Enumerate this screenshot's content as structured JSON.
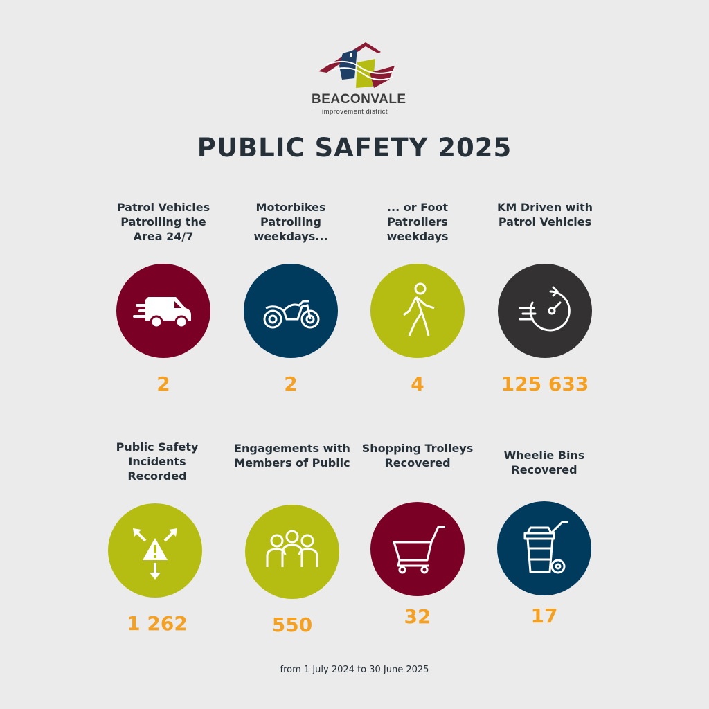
{
  "logo": {
    "name": "BEACONVALE",
    "subtitle": "improvement district"
  },
  "title": "PUBLIC SAFETY 2025",
  "colors": {
    "background": "#ebebeb",
    "maroon": "#7b0025",
    "navy": "#003a5d",
    "lime": "#b5bd12",
    "charcoal": "#333132",
    "value_orange": "#f4a023",
    "text": "#253038"
  },
  "stats": [
    {
      "label": "Patrol Vehicles Patrolling the Area 24/7",
      "value": "2",
      "icon": "van-icon",
      "color": "#7b0025"
    },
    {
      "label": "Motorbikes Patrolling weekdays...",
      "value": "2",
      "icon": "motorbike-icon",
      "color": "#003a5d"
    },
    {
      "label": "... or Foot Patrollers weekdays",
      "value": "4",
      "icon": "walking-person-icon",
      "color": "#b5bd12"
    },
    {
      "label": "KM Driven with Patrol Vehicles",
      "value": "125 633",
      "icon": "speedometer-icon",
      "color": "#333132"
    },
    {
      "label": "Public Safety Incidents Recorded",
      "value": "1 262",
      "icon": "warning-arrows-icon",
      "color": "#b5bd12"
    },
    {
      "label": "Engagements with Members of Public",
      "value": "550",
      "icon": "people-group-icon",
      "color": "#b5bd12"
    },
    {
      "label": "Shopping Trolleys Recovered",
      "value": "32",
      "icon": "shopping-cart-icon",
      "color": "#7b0025"
    },
    {
      "label": "Wheelie Bins Recovered",
      "value": "17",
      "icon": "wheelie-bin-icon",
      "color": "#003a5d"
    }
  ],
  "footer": "from 1 July 2024 to 30 June 2025"
}
